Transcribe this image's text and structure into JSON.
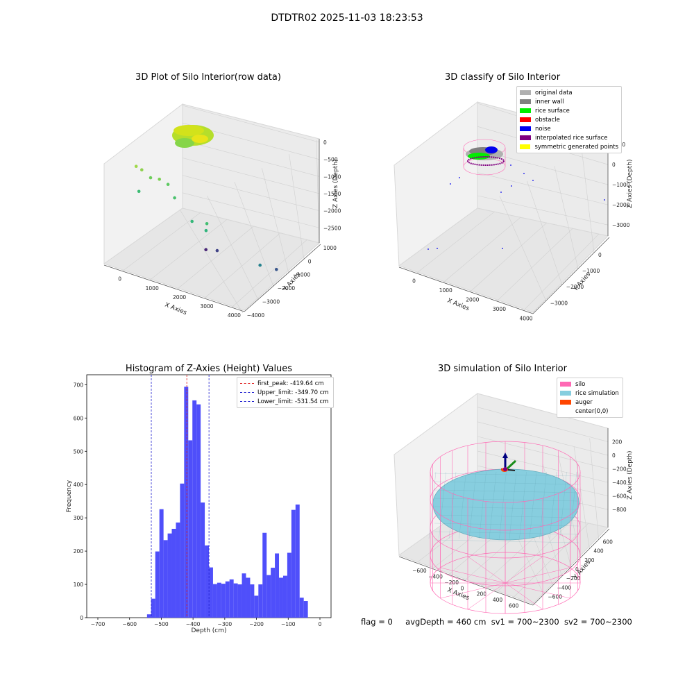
{
  "suptitle": "DTDTR02 2025-11-03 18:23:53",
  "status_line": {
    "flag": "flag = 0",
    "avg": "avgDepth = 460 cm",
    "sv1": "sv1 = 700~2300",
    "sv2": "sv2 = 700~2300"
  },
  "colors": {
    "hist_bar": "#4f4ffa",
    "first_peak": "#e02020",
    "limits": "#2020d0",
    "silo": "#ff69b4",
    "rice": "#87cedf",
    "auger": "#ff4500",
    "grid": "#cccccc"
  },
  "chart_data": [
    {
      "type": "scatter",
      "title": "3D Plot of Silo Interior(row data)",
      "xlabel": "X Axies",
      "ylabel": "Y Axies",
      "zlabel": "Z Axies (Depth)",
      "xticks": [
        "0",
        "1000",
        "2000",
        "3000",
        "4000"
      ],
      "yticks": [
        "1000",
        "0",
        "−1000",
        "−2000",
        "−3000",
        "−4000"
      ],
      "zticks": [
        "0",
        "−500",
        "−1000",
        "−1500",
        "−2000",
        "−2500"
      ],
      "points": [
        {
          "x": 100,
          "y": -300,
          "z": -150,
          "c": "#9fd94a"
        },
        {
          "x": 300,
          "y": -250,
          "z": -180,
          "c": "#8fd14f"
        },
        {
          "x": 600,
          "y": -200,
          "z": -300,
          "c": "#6ccd5a"
        },
        {
          "x": 900,
          "y": -150,
          "z": -250,
          "c": "#7ad151"
        },
        {
          "x": 1100,
          "y": -300,
          "z": -350,
          "c": "#5ec962"
        },
        {
          "x": 1400,
          "y": -100,
          "z": -600,
          "c": "#4ac16d"
        },
        {
          "x": 0,
          "y": -700,
          "z": -900,
          "c": "#3dbc74"
        },
        {
          "x": 1900,
          "y": -200,
          "z": -1100,
          "c": "#35b779"
        },
        {
          "x": 2200,
          "y": -500,
          "z": -1300,
          "c": "#2fb47c"
        },
        {
          "x": 2600,
          "y": 300,
          "z": -900,
          "c": "#42be71"
        },
        {
          "x": 3800,
          "y": -700,
          "z": -1800,
          "c": "#26828e"
        },
        {
          "x": 3000,
          "y": -3500,
          "z": -2500,
          "c": "#39568c"
        },
        {
          "x": 1000,
          "y": -3800,
          "z": -2600,
          "c": "#414487"
        },
        {
          "x": 600,
          "y": -3900,
          "z": -2700,
          "c": "#482677"
        }
      ]
    },
    {
      "type": "scatter",
      "title": "3D classify of Silo Interior",
      "xlabel": "X Axies",
      "ylabel": "Y Axies",
      "zlabel": "Z Axies (Depth)",
      "xticks": [
        "0",
        "1000",
        "2000",
        "3000",
        "4000"
      ],
      "yticks": [
        "0",
        "−1000",
        "−2000",
        "−3000"
      ],
      "zticks": [
        "1000",
        "0",
        "−1000",
        "−2000",
        "−3000"
      ],
      "legend": [
        {
          "label": "original data",
          "color": "#b0b0b0"
        },
        {
          "label": "inner wall",
          "color": "#808080"
        },
        {
          "label": "rice surface",
          "color": "#00ee00"
        },
        {
          "label": "obstacle",
          "color": "#ff0000"
        },
        {
          "label": "noise",
          "color": "#0000ee"
        },
        {
          "label": "interpolated rice surface",
          "color": "#800080"
        },
        {
          "label": "symmetric generated points",
          "color": "#ffff00"
        }
      ]
    },
    {
      "type": "bar",
      "title": "Histogram of Z-Axies (Height) Values",
      "xlabel": "Depth (cm)",
      "ylabel": "Frequency",
      "xlim": [
        -735,
        35
      ],
      "ylim": [
        0,
        730
      ],
      "xticks": [
        -700,
        -600,
        -500,
        -400,
        -300,
        -200,
        -100,
        0
      ],
      "xtick_labels": [
        "−700",
        "−600",
        "−500",
        "−400",
        "−300",
        "−200",
        "−100",
        "0"
      ],
      "yticks": [
        0,
        100,
        200,
        300,
        400,
        500,
        600,
        700
      ],
      "bin_start": -545,
      "bin_width": 13,
      "values": [
        10,
        57,
        199,
        326,
        233,
        253,
        267,
        286,
        403,
        694,
        533,
        653,
        641,
        346,
        217,
        151,
        101,
        105,
        102,
        109,
        115,
        103,
        100,
        133,
        120,
        100,
        66,
        100,
        255,
        128,
        150,
        193,
        120,
        126,
        195,
        324,
        340,
        60,
        50
      ],
      "lines": [
        {
          "label": "first_peak: -419.64 cm",
          "x": -419.64,
          "role": "first_peak"
        },
        {
          "label": "Upper_limit: -349.70 cm",
          "x": -349.7,
          "role": "limits"
        },
        {
          "label": "Lower_limit: -531.54 cm",
          "x": -531.54,
          "role": "limits"
        }
      ]
    },
    {
      "type": "area",
      "title": "3D simulation of Silo Interior",
      "xlabel": "X Axies",
      "ylabel": "Y Axies",
      "zlabel": "Z Axies (Depth)",
      "xticks": [
        "−600",
        "−400",
        "−200",
        "0",
        "200",
        "400",
        "600"
      ],
      "yticks": [
        "600",
        "400",
        "200",
        "0",
        "−200",
        "−400",
        "−600"
      ],
      "zticks": [
        "200",
        "0",
        "−200",
        "−400",
        "−600",
        "−800"
      ],
      "legend": [
        {
          "label": "silo",
          "color": "#ff69b4"
        },
        {
          "label": "rice simulation",
          "color": "#87cedf"
        },
        {
          "label": "auger",
          "color": "#ff4500"
        },
        {
          "label": "center(0,0)",
          "color": ""
        }
      ]
    }
  ]
}
